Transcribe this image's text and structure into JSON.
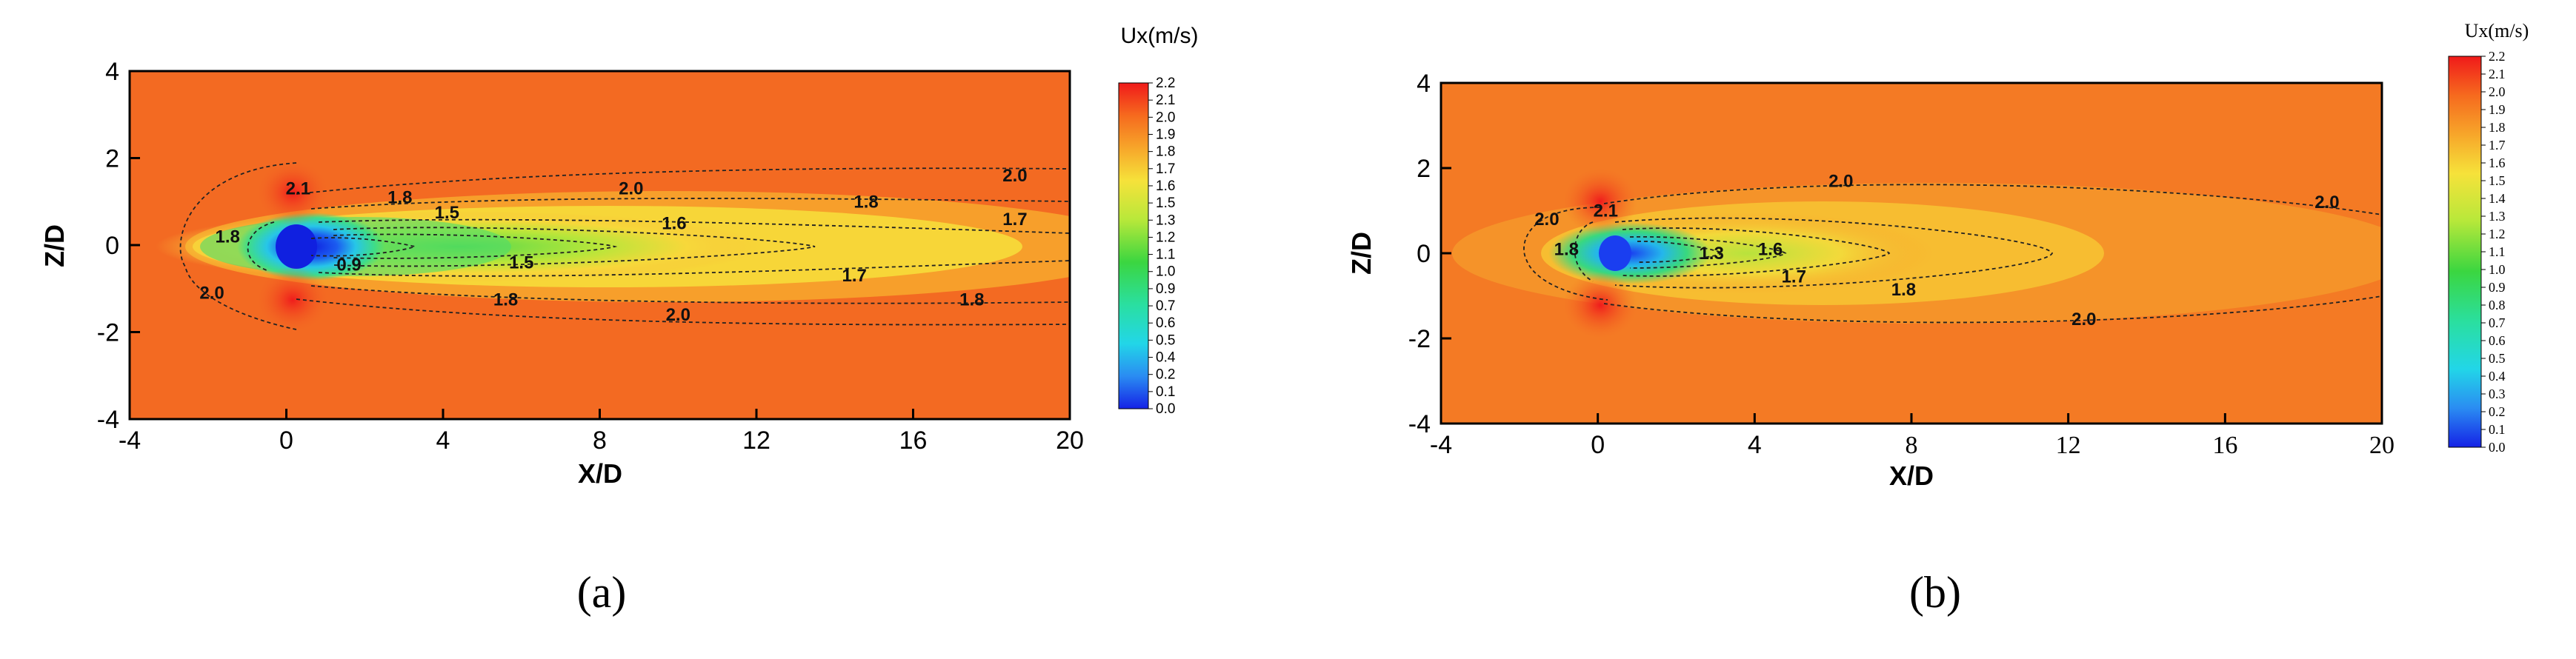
{
  "chart_data": [
    {
      "panel_label": "(a)",
      "type": "heatmap",
      "xlabel": "X/D",
      "ylabel": "Z/D",
      "xlim": [
        -4,
        20
      ],
      "ylim": [
        -4,
        4
      ],
      "x_ticks": [
        "-4",
        "0",
        "4",
        "8",
        "12",
        "16",
        "20"
      ],
      "y_ticks": [
        "4",
        "2",
        "0",
        "-2",
        "-4"
      ],
      "colorbar": {
        "title": "Ux(m/s)",
        "levels": [
          "2.2",
          "2.1",
          "2.0",
          "1.9",
          "1.8",
          "1.7",
          "1.6",
          "1.5",
          "1.3",
          "1.2",
          "1.1",
          "1.0",
          "0.9",
          "0.7",
          "0.6",
          "0.5",
          "0.4",
          "0.2",
          "0.1",
          "0.0"
        ],
        "placement": "right"
      },
      "contours": [
        {
          "value": "2.1",
          "x": 0.3,
          "y": 1.3
        },
        {
          "value": "1.8",
          "x": 2.9,
          "y": 1.1
        },
        {
          "value": "1.5",
          "x": 4.1,
          "y": 0.75
        },
        {
          "value": "2.0",
          "x": 8.8,
          "y": 1.3
        },
        {
          "value": "2.0",
          "x": 18.6,
          "y": 1.6
        },
        {
          "value": "1.8",
          "x": -1.5,
          "y": 0.2
        },
        {
          "value": "1.6",
          "x": 9.9,
          "y": 0.5
        },
        {
          "value": "1.8",
          "x": 14.8,
          "y": 1.0
        },
        {
          "value": "1.7",
          "x": 18.6,
          "y": 0.6
        },
        {
          "value": "0.9",
          "x": 1.6,
          "y": -0.45
        },
        {
          "value": "1.5",
          "x": 6.0,
          "y": -0.4
        },
        {
          "value": "2.0",
          "x": -1.9,
          "y": -1.1
        },
        {
          "value": "1.8",
          "x": 5.6,
          "y": -1.25
        },
        {
          "value": "2.0",
          "x": 10.0,
          "y": -1.6
        },
        {
          "value": "1.7",
          "x": 14.5,
          "y": -0.7
        },
        {
          "value": "1.8",
          "x": 17.5,
          "y": -1.25
        }
      ]
    },
    {
      "panel_label": "(b)",
      "type": "heatmap",
      "xlabel": "X/D",
      "ylabel": "Z/D",
      "xlim": [
        -4,
        20
      ],
      "ylim": [
        -4,
        4
      ],
      "x_ticks": [
        "-4",
        "0",
        "4",
        "8",
        "12",
        "16",
        "20"
      ],
      "y_ticks": [
        "4",
        "2",
        "0",
        "-2",
        "-4"
      ],
      "colorbar": {
        "title": "Ux(m/s)",
        "levels": [
          "2.2",
          "2.1",
          "2.0",
          "1.9",
          "1.8",
          "1.7",
          "1.6",
          "1.5",
          "1.4",
          "1.3",
          "1.2",
          "1.1",
          "1.0",
          "0.9",
          "0.8",
          "0.7",
          "0.6",
          "0.5",
          "0.4",
          "0.3",
          "0.2",
          "0.1",
          "0.0"
        ],
        "placement": "right"
      },
      "contours": [
        {
          "value": "2.0",
          "x": 6.2,
          "y": 1.7
        },
        {
          "value": "2.0",
          "x": 18.6,
          "y": 1.2
        },
        {
          "value": "2.0",
          "x": -1.3,
          "y": 0.8
        },
        {
          "value": "2.1",
          "x": 0.2,
          "y": 1.0
        },
        {
          "value": "1.8",
          "x": -0.8,
          "y": 0.1
        },
        {
          "value": "1.3",
          "x": 2.9,
          "y": 0.0
        },
        {
          "value": "1.6",
          "x": 4.4,
          "y": 0.1
        },
        {
          "value": "1.7",
          "x": 5.0,
          "y": -0.55
        },
        {
          "value": "1.8",
          "x": 7.8,
          "y": -0.85
        },
        {
          "value": "2.0",
          "x": 12.4,
          "y": -1.55
        }
      ]
    }
  ]
}
